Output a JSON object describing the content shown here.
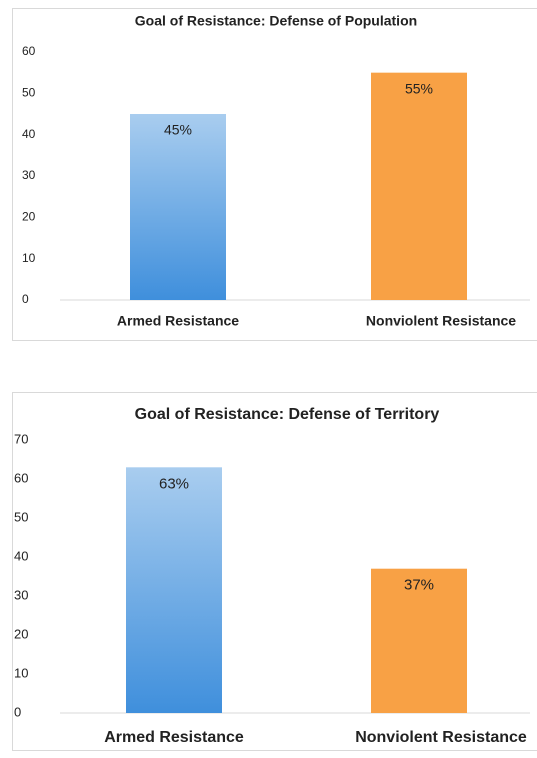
{
  "chart_data": [
    {
      "type": "bar",
      "title": "Goal of Resistance: Defense of Population",
      "categories": [
        "Armed Resistance",
        "Nonviolent Resistance"
      ],
      "values": [
        45,
        55
      ],
      "value_labels": [
        "45%",
        "55%"
      ],
      "colors": [
        "#3f8fdc",
        "#f8a145"
      ],
      "ylim": [
        0,
        60
      ],
      "yticks": [
        0,
        10,
        20,
        30,
        40,
        50,
        60
      ],
      "grid": false
    },
    {
      "type": "bar",
      "title": "Goal of Resistance: Defense of Territory",
      "categories": [
        "Armed Resistance",
        "Nonviolent Resistance"
      ],
      "values": [
        63,
        37
      ],
      "value_labels": [
        "63%",
        "37%"
      ],
      "colors": [
        "#3f8fdc",
        "#f8a145"
      ],
      "ylim": [
        0,
        70
      ],
      "yticks": [
        0,
        10,
        20,
        30,
        40,
        50,
        60,
        70
      ],
      "grid": false
    }
  ]
}
